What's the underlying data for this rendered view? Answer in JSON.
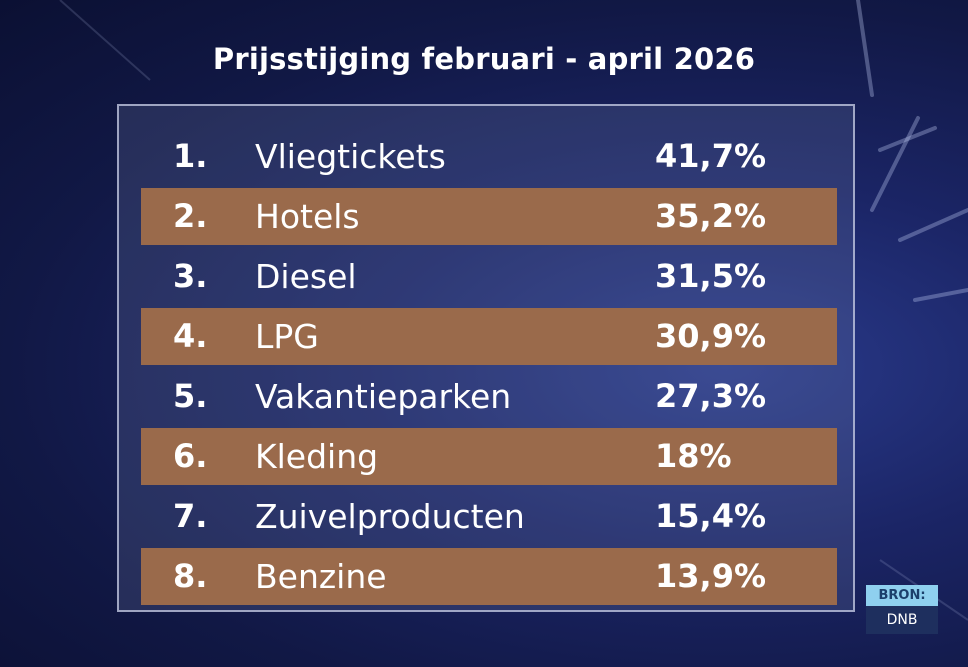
{
  "chart_data": {
    "type": "table",
    "title": "Prijsstijging februari - april 2026",
    "rows": [
      {
        "rank": "1.",
        "label": "Vliegtickets",
        "value_text": "41,7%",
        "value": 41.7
      },
      {
        "rank": "2.",
        "label": "Hotels",
        "value_text": "35,2%",
        "value": 35.2
      },
      {
        "rank": "3.",
        "label": "Diesel",
        "value_text": "31,5%",
        "value": 31.5
      },
      {
        "rank": "4.",
        "label": "LPG",
        "value_text": "30,9%",
        "value": 30.9
      },
      {
        "rank": "5.",
        "label": "Vakantieparken",
        "value_text": "27,3%",
        "value": 27.3
      },
      {
        "rank": "6.",
        "label": "Kleding",
        "value_text": "18%",
        "value": 18
      },
      {
        "rank": "7.",
        "label": "Zuivelproducten",
        "value_text": "15,4%",
        "value": 15.4
      },
      {
        "rank": "8.",
        "label": "Benzine",
        "value_text": "13,9%",
        "value": 13.9
      }
    ]
  },
  "source": {
    "tag": "BRON:",
    "name": "DNB"
  },
  "colors": {
    "stripe": "#9a6a4b",
    "source_tag": "#8fd0ef",
    "background": "#1b2566"
  }
}
